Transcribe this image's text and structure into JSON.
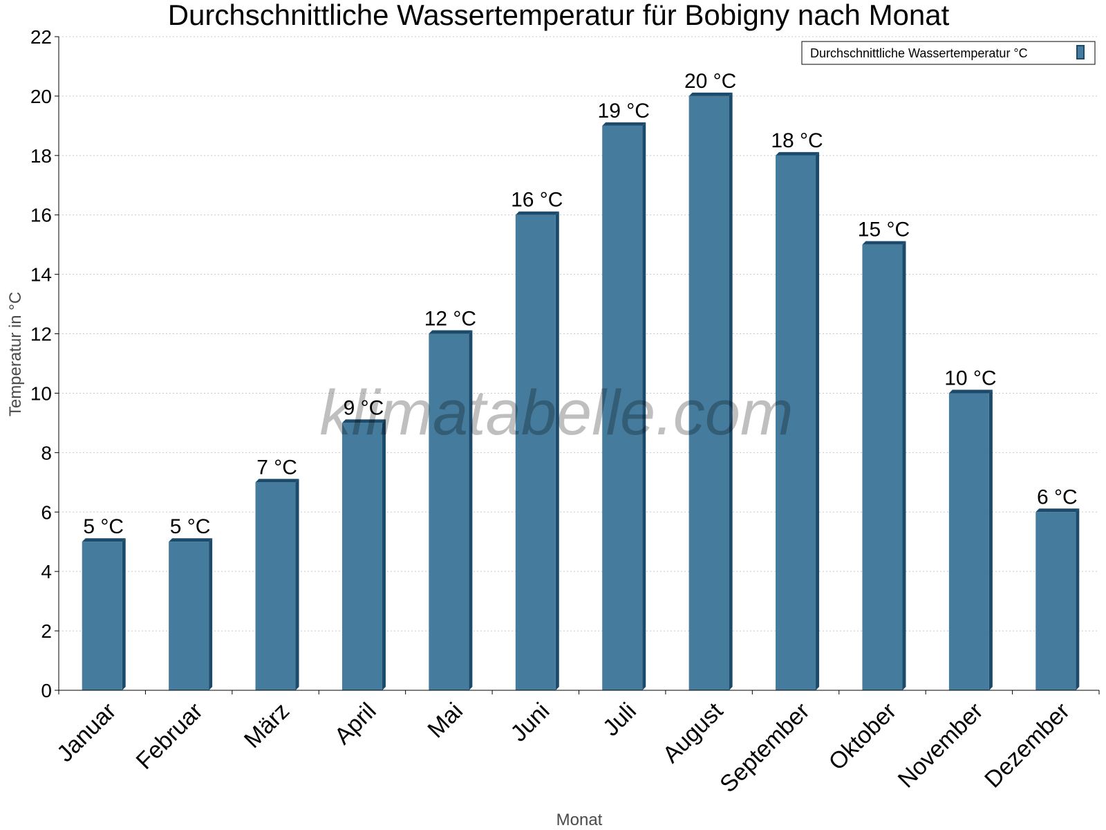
{
  "chart_data": {
    "type": "bar",
    "title": "Durchschnittliche Wassertemperatur für Bobigny nach Monat",
    "xlabel": "Monat",
    "ylabel": "Temperatur in °C",
    "categories": [
      "Januar",
      "Februar",
      "März",
      "April",
      "Mai",
      "Juni",
      "Juli",
      "August",
      "September",
      "Oktober",
      "November",
      "Dezember"
    ],
    "series": [
      {
        "name": "Durchschnittliche Wassertemperatur °C",
        "values": [
          5,
          5,
          7,
          9,
          12,
          16,
          19,
          20,
          18,
          15,
          10,
          6
        ],
        "labels": [
          "5 °C",
          "5 °C",
          "7 °C",
          "9 °C",
          "12 °C",
          "16 °C",
          "19 °C",
          "20 °C",
          "18 °C",
          "15 °C",
          "10 °C",
          "6 °C"
        ],
        "color": "#457b9d"
      }
    ],
    "ylim": [
      0,
      22
    ],
    "yticks": [
      0,
      2,
      4,
      6,
      8,
      10,
      12,
      14,
      16,
      18,
      20,
      22
    ],
    "grid": true,
    "legend_position": "top-right",
    "watermark": "klimatabelle.com"
  },
  "colors": {
    "bar": "#457b9d",
    "bar_side": "#1b4a6b",
    "grid": "#c8c8c8",
    "axis": "#000000"
  }
}
